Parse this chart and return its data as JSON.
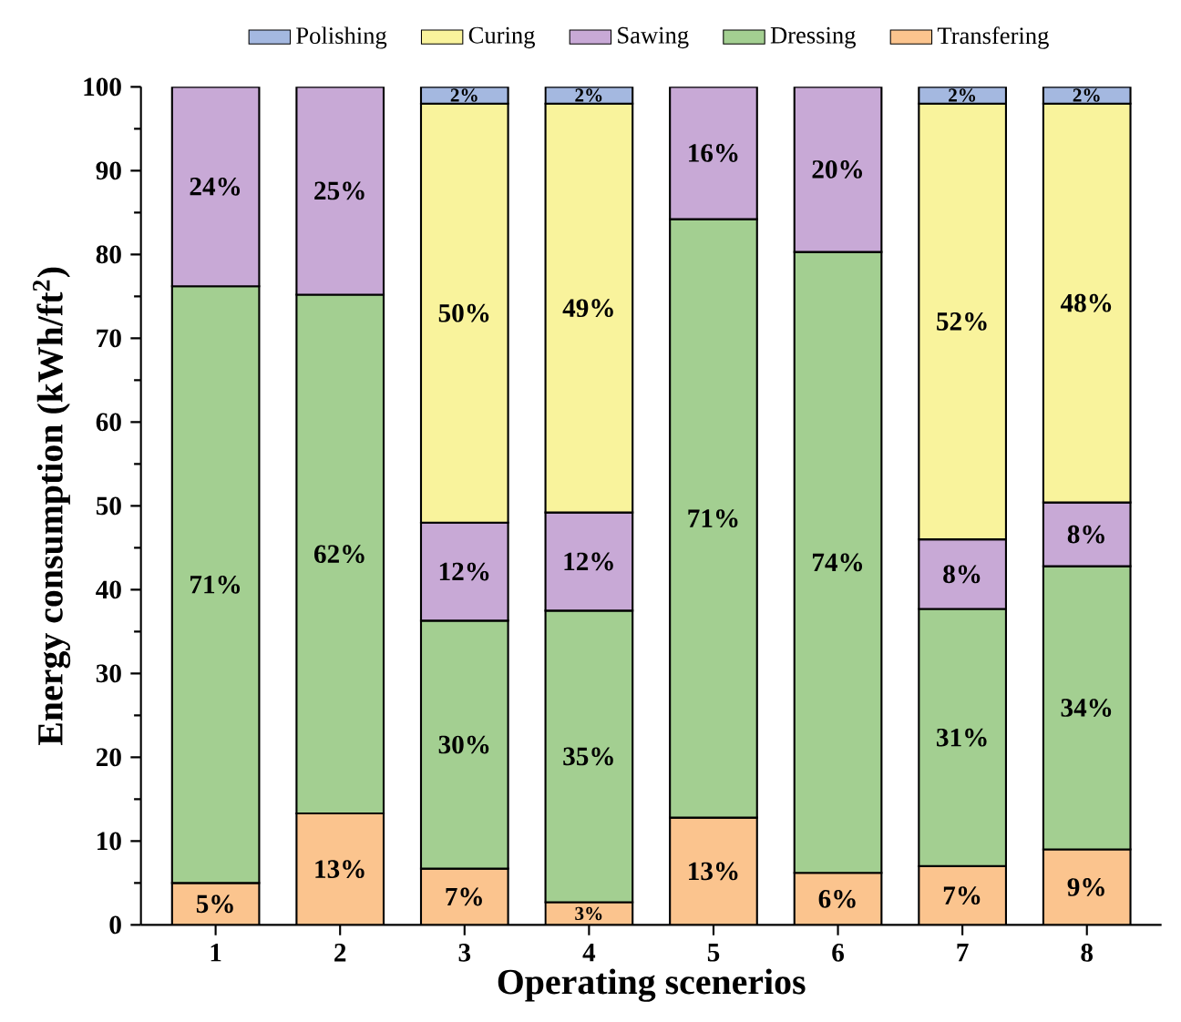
{
  "chart_data": {
    "type": "bar",
    "stacked": true,
    "xlabel": "Operating scenerios",
    "ylabel": "Energy consumption (kWh/ft$^{2}$)",
    "categories": [
      "1",
      "2",
      "3",
      "4",
      "5",
      "6",
      "7",
      "8"
    ],
    "ylim": [
      0,
      100
    ],
    "yticks": [
      0,
      10,
      20,
      30,
      40,
      50,
      60,
      70,
      80,
      90,
      100
    ],
    "legend": "top",
    "grid": false,
    "series": [
      {
        "name": "Transfering",
        "color": "#fbc48e",
        "values": [
          5,
          13.3,
          6.7,
          2.7,
          12.8,
          6.2,
          7,
          9
        ],
        "value_labels": [
          "5%",
          "13%",
          "7%",
          "3%",
          "13%",
          "6%",
          "7%",
          "9%"
        ]
      },
      {
        "name": "Dressing",
        "color": "#a3cf91",
        "values": [
          71.2,
          61.9,
          29.6,
          34.8,
          71.4,
          74.1,
          30.7,
          33.8
        ],
        "value_labels": [
          "71%",
          "62%",
          "30%",
          "35%",
          "71%",
          "74%",
          "31%",
          "34%"
        ]
      },
      {
        "name": "Sawing",
        "color": "#c8a9d6",
        "values": [
          23.8,
          24.8,
          11.7,
          11.7,
          15.8,
          19.7,
          8.3,
          7.6
        ],
        "value_labels": [
          "24%",
          "25%",
          "12%",
          "12%",
          "16%",
          "20%",
          "8%",
          "8%"
        ]
      },
      {
        "name": "Curing",
        "color": "#f9f39c",
        "values": [
          null,
          null,
          50,
          48.8,
          null,
          null,
          52,
          47.6
        ],
        "value_labels": [
          null,
          null,
          "50%",
          "49%",
          null,
          null,
          "52%",
          "48%"
        ]
      },
      {
        "name": "Polishing",
        "color": "#a4b8e0",
        "values": [
          null,
          null,
          2,
          2,
          null,
          null,
          2,
          2
        ],
        "value_labels": [
          null,
          null,
          "2%",
          "2%",
          null,
          null,
          "2%",
          "2%"
        ]
      }
    ]
  }
}
